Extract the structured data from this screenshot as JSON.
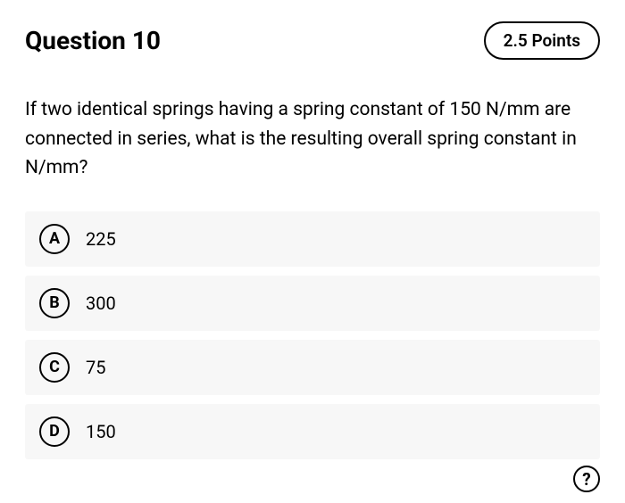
{
  "header": {
    "title": "Question 10",
    "points": "2.5 Points"
  },
  "question": {
    "text": "If two identical springs having a spring constant of 150 N/mm are connected in series, what is the resulting overall spring constant in N/mm?"
  },
  "options": [
    {
      "letter": "A",
      "text": "225"
    },
    {
      "letter": "B",
      "text": "300"
    },
    {
      "letter": "C",
      "text": "75"
    },
    {
      "letter": "D",
      "text": "150"
    }
  ],
  "help": {
    "symbol": "?"
  }
}
